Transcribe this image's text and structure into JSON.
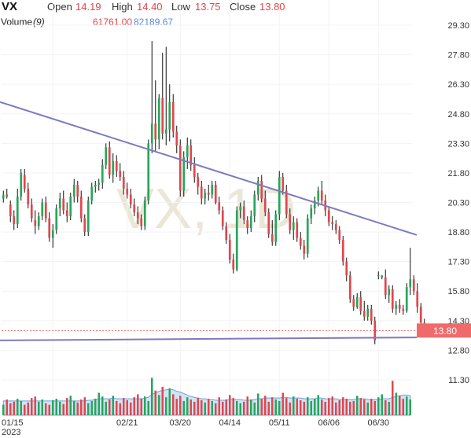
{
  "header": {
    "symbol": "VX",
    "open_label": "Open",
    "open_value": "14.19",
    "high_label": "High",
    "high_value": "14.40",
    "low_label": "Low",
    "low_value": "13.75",
    "close_label": "Close",
    "close_value": "13.80"
  },
  "volume_legend": {
    "label": "Volume",
    "period": "(9)",
    "value_a": "61761.00",
    "value_b": "82189.67"
  },
  "watermark": "VX, 1D",
  "colors": {
    "up": "#26a65b",
    "down": "#e0474c",
    "trendline": "#7b7bbf",
    "volume_ma": "#9ec0ea",
    "axis_text": "#333333",
    "price_tag": "#f06a6a"
  },
  "chart_data": {
    "type": "candlestick",
    "title": "",
    "y_ticks": [
      "29.30",
      "27.80",
      "26.30",
      "24.80",
      "23.30",
      "21.80",
      "20.30",
      "18.80",
      "17.30",
      "15.80",
      "14.30",
      "12.80",
      "11.30"
    ],
    "y_range": [
      10.3,
      29.9
    ],
    "x_ticks": [
      "01/15",
      "02/21",
      "03/20",
      "04/14",
      "05/11",
      "06/06",
      "06/30"
    ],
    "x_tick_positions": [
      14,
      35,
      50,
      64,
      78,
      92,
      106
    ],
    "x_sublabel": "2023",
    "n_bars": 116,
    "last_price": "13.80",
    "last_price_value": 13.8,
    "trendlines": [
      {
        "from": [
          0,
          25.4
        ],
        "to": [
          116,
          18.65
        ]
      },
      {
        "from": [
          0,
          13.3
        ],
        "to": [
          116,
          13.45
        ]
      }
    ],
    "candles": [
      [
        20.5,
        20.9,
        20.3,
        20.7
      ],
      [
        20.7,
        21.0,
        20.5,
        20.6
      ],
      [
        20.2,
        20.4,
        19.3,
        19.6
      ],
      [
        19.6,
        19.9,
        18.9,
        19.2
      ],
      [
        19.2,
        21.0,
        19.0,
        20.6
      ],
      [
        20.6,
        22.0,
        20.4,
        21.8
      ],
      [
        21.7,
        22.0,
        20.8,
        21.0
      ],
      [
        21.0,
        21.3,
        20.0,
        20.2
      ],
      [
        20.2,
        20.5,
        19.3,
        19.5
      ],
      [
        19.4,
        19.9,
        18.7,
        19.1
      ],
      [
        19.1,
        19.8,
        18.9,
        19.6
      ],
      [
        19.6,
        20.5,
        19.4,
        20.3
      ],
      [
        20.3,
        20.6,
        19.3,
        19.5
      ],
      [
        19.5,
        19.8,
        18.3,
        18.5
      ],
      [
        18.5,
        19.2,
        18.0,
        18.9
      ],
      [
        18.9,
        20.2,
        18.7,
        20.0
      ],
      [
        20.0,
        20.8,
        19.6,
        20.5
      ],
      [
        20.5,
        20.9,
        19.7,
        19.9
      ],
      [
        19.9,
        20.3,
        19.3,
        19.6
      ],
      [
        19.6,
        20.8,
        19.4,
        20.6
      ],
      [
        20.6,
        21.5,
        20.3,
        21.2
      ],
      [
        21.2,
        21.4,
        20.3,
        20.6
      ],
      [
        20.6,
        20.9,
        19.3,
        19.5
      ],
      [
        19.5,
        19.7,
        18.6,
        18.8
      ],
      [
        18.8,
        20.6,
        18.6,
        20.4
      ],
      [
        20.4,
        21.3,
        20.2,
        21.1
      ],
      [
        21.1,
        21.4,
        20.8,
        21.2
      ],
      [
        21.2,
        21.5,
        20.9,
        21.3
      ],
      [
        21.3,
        22.5,
        21.0,
        22.2
      ],
      [
        22.2,
        23.3,
        22.0,
        23.1
      ],
      [
        23.1,
        23.4,
        21.5,
        21.7
      ],
      [
        21.7,
        22.8,
        21.3,
        22.4
      ],
      [
        22.4,
        22.7,
        21.6,
        21.9
      ],
      [
        21.9,
        22.3,
        21.4,
        21.6
      ],
      [
        21.6,
        21.9,
        20.7,
        21.0
      ],
      [
        21.0,
        21.3,
        20.5,
        20.7
      ],
      [
        20.7,
        21.0,
        20.0,
        20.2
      ],
      [
        20.2,
        20.5,
        19.6,
        19.8
      ],
      [
        19.8,
        20.1,
        19.2,
        19.5
      ],
      [
        19.5,
        19.7,
        18.9,
        19.1
      ],
      [
        19.1,
        20.6,
        18.9,
        20.4
      ],
      [
        20.4,
        23.5,
        20.2,
        23.3
      ],
      [
        23.3,
        28.5,
        22.8,
        24.3
      ],
      [
        24.3,
        26.5,
        22.9,
        23.5
      ],
      [
        23.5,
        25.8,
        23.0,
        25.6
      ],
      [
        25.6,
        27.9,
        23.5,
        23.8
      ],
      [
        23.8,
        28.2,
        23.2,
        24.0
      ],
      [
        24.0,
        26.3,
        23.4,
        25.4
      ],
      [
        25.4,
        25.8,
        23.6,
        23.9
      ],
      [
        23.9,
        24.2,
        22.8,
        23.2
      ],
      [
        23.2,
        23.5,
        20.6,
        20.9
      ],
      [
        20.9,
        22.9,
        20.6,
        22.6
      ],
      [
        22.6,
        23.6,
        22.0,
        23.2
      ],
      [
        23.2,
        23.5,
        21.9,
        22.2
      ],
      [
        22.2,
        22.6,
        21.3,
        21.6
      ],
      [
        21.6,
        21.8,
        20.7,
        21.1
      ],
      [
        21.1,
        21.4,
        20.2,
        20.5
      ],
      [
        20.5,
        21.0,
        20.2,
        20.8
      ],
      [
        20.8,
        21.2,
        20.4,
        20.7
      ],
      [
        20.7,
        21.4,
        20.5,
        21.2
      ],
      [
        21.2,
        21.4,
        20.2,
        20.3
      ],
      [
        20.3,
        20.6,
        19.7,
        19.9
      ],
      [
        19.9,
        20.1,
        18.9,
        19.1
      ],
      [
        19.1,
        19.3,
        18.2,
        18.4
      ],
      [
        18.4,
        18.7,
        17.2,
        17.4
      ],
      [
        17.4,
        17.7,
        16.7,
        16.9
      ],
      [
        16.9,
        20.1,
        16.8,
        19.9
      ],
      [
        19.9,
        20.3,
        19.5,
        20.1
      ],
      [
        20.1,
        20.4,
        19.2,
        19.4
      ],
      [
        19.4,
        19.6,
        18.7,
        19.0
      ],
      [
        19.0,
        19.9,
        18.8,
        19.6
      ],
      [
        19.6,
        20.9,
        19.3,
        20.7
      ],
      [
        20.7,
        21.6,
        20.4,
        21.4
      ],
      [
        21.4,
        21.7,
        20.3,
        20.5
      ],
      [
        20.5,
        20.9,
        19.6,
        19.8
      ],
      [
        19.8,
        20.0,
        18.5,
        18.7
      ],
      [
        18.7,
        19.4,
        18.1,
        18.3
      ],
      [
        18.3,
        19.9,
        18.1,
        19.7
      ],
      [
        19.7,
        21.9,
        19.4,
        21.6
      ],
      [
        21.6,
        21.8,
        20.7,
        20.9
      ],
      [
        20.9,
        21.2,
        19.5,
        19.7
      ],
      [
        19.7,
        20.0,
        18.7,
        18.9
      ],
      [
        18.9,
        19.6,
        18.4,
        19.3
      ],
      [
        19.3,
        19.5,
        18.3,
        18.5
      ],
      [
        18.5,
        18.8,
        17.9,
        18.1
      ],
      [
        18.1,
        18.4,
        17.4,
        17.7
      ],
      [
        17.7,
        19.7,
        17.5,
        19.5
      ],
      [
        19.5,
        20.2,
        19.2,
        20.0
      ],
      [
        20.0,
        20.6,
        19.7,
        20.4
      ],
      [
        20.4,
        21.1,
        20.1,
        20.9
      ],
      [
        20.9,
        21.4,
        20.2,
        20.4
      ],
      [
        20.4,
        20.7,
        19.6,
        19.9
      ],
      [
        19.9,
        20.1,
        19.1,
        19.3
      ],
      [
        19.3,
        19.6,
        18.9,
        19.2
      ],
      [
        19.2,
        19.4,
        18.7,
        18.9
      ],
      [
        18.9,
        19.1,
        18.2,
        18.4
      ],
      [
        18.4,
        18.6,
        17.1,
        17.3
      ],
      [
        17.3,
        17.5,
        16.3,
        16.6
      ],
      [
        16.6,
        16.8,
        15.2,
        15.4
      ],
      [
        15.4,
        15.6,
        14.8,
        15.0
      ],
      [
        15.0,
        15.7,
        14.9,
        15.5
      ],
      [
        15.5,
        15.8,
        14.6,
        14.8
      ],
      [
        14.8,
        15.3,
        14.3,
        14.5
      ],
      [
        14.5,
        15.1,
        14.3,
        14.9
      ],
      [
        14.9,
        15.1,
        14.1,
        14.3
      ],
      [
        14.3,
        14.5,
        13.1,
        13.3
      ],
      [
        16.6,
        16.8,
        16.4,
        16.6
      ],
      [
        16.5,
        16.6,
        16.4,
        16.6
      ],
      [
        16.5,
        16.9,
        15.4,
        15.6
      ],
      [
        15.6,
        16.1,
        15.2,
        15.9
      ],
      [
        15.9,
        16.1,
        14.7,
        14.9
      ],
      [
        14.9,
        15.3,
        14.6,
        15.1
      ],
      [
        15.1,
        15.4,
        14.7,
        14.9
      ],
      [
        14.9,
        15.1,
        14.6,
        14.8
      ],
      [
        14.8,
        16.2,
        14.7,
        16.0
      ],
      [
        16.0,
        18.0,
        15.6,
        16.4
      ]
    ],
    "candles_tail": [
      [
        16.4,
        16.6,
        15.6,
        15.8
      ],
      [
        15.8,
        16.2,
        14.7,
        15.0
      ],
      [
        15.0,
        15.2,
        14.1,
        14.2
      ],
      [
        14.19,
        14.4,
        13.75,
        13.8
      ]
    ],
    "volume": [
      14,
      21,
      16,
      18,
      22,
      19,
      14,
      17,
      23,
      25,
      18,
      21,
      16,
      14,
      20,
      22,
      18,
      15,
      23,
      26,
      19,
      17,
      21,
      24,
      16,
      19,
      22,
      30,
      25,
      18,
      21,
      26,
      19,
      16,
      23,
      20,
      17,
      24,
      28,
      22,
      25,
      19,
      50,
      33,
      27,
      38,
      24,
      36,
      28,
      22,
      26,
      19,
      24,
      21,
      18,
      23,
      20,
      17,
      22,
      19,
      16,
      24,
      18,
      21,
      27,
      23,
      19,
      16,
      18,
      25,
      21,
      17,
      29,
      22,
      26,
      18,
      24,
      21,
      19,
      30,
      23,
      17,
      25,
      22,
      20,
      18,
      24,
      19,
      22,
      27,
      21,
      18,
      23,
      25,
      17,
      20,
      24,
      22,
      18,
      19,
      26,
      23,
      21,
      17,
      22,
      19,
      24,
      28,
      20,
      18,
      46,
      30,
      26,
      22,
      25,
      21
    ],
    "volume_ma": [
      19,
      19,
      19,
      19,
      19,
      19,
      19,
      19,
      19,
      19,
      19,
      19,
      19,
      19,
      19,
      19,
      19,
      19,
      19,
      19,
      19,
      19,
      19,
      19,
      20,
      20,
      21,
      22,
      22,
      22,
      22,
      23,
      22,
      22,
      22,
      22,
      22,
      22,
      22,
      22,
      23,
      24,
      28,
      30,
      32,
      33,
      34,
      35,
      34,
      32,
      31,
      29,
      27,
      25,
      24,
      23,
      22,
      22,
      21,
      21,
      20,
      20,
      20,
      20,
      21,
      21,
      21,
      21,
      20,
      20,
      20,
      21,
      22,
      22,
      23,
      23,
      23,
      23,
      23,
      24,
      24,
      23,
      23,
      23,
      23,
      22,
      22,
      22,
      22,
      23,
      23,
      22,
      22,
      22,
      22,
      21,
      21,
      21,
      21,
      21,
      22,
      22,
      22,
      21,
      21,
      21,
      21,
      22,
      22,
      22,
      24,
      25,
      26,
      27,
      27,
      26
    ]
  }
}
